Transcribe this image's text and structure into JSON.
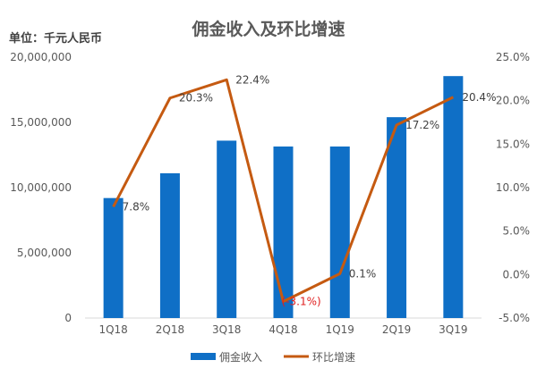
{
  "chart_data": {
    "type": "bar+line",
    "title": "佣金收入及环比增速",
    "unit_label": "单位：千元人民币",
    "categories": [
      "1Q18",
      "2Q18",
      "3Q18",
      "4Q18",
      "1Q19",
      "2Q19",
      "3Q19"
    ],
    "series": [
      {
        "name": "佣金收入",
        "type": "bar",
        "axis": "left",
        "color": "#0f6fc6",
        "values": [
          9200000,
          11100000,
          13600000,
          13150000,
          13150000,
          15400000,
          18550000
        ]
      },
      {
        "name": "环比增速",
        "type": "line",
        "axis": "right",
        "color": "#c55a11",
        "values": [
          7.8,
          20.3,
          22.4,
          -3.1,
          0.1,
          17.2,
          20.4
        ],
        "labels": [
          "7.8%",
          "20.3%",
          "22.4%",
          "(-3.1%)",
          "0.1%",
          "17.2%",
          "20.4%"
        ]
      }
    ],
    "left_axis": {
      "range": [
        0,
        20000000
      ],
      "ticks": [
        "0",
        "5,000,000",
        "10,000,000",
        "15,000,000",
        "20,000,000"
      ]
    },
    "right_axis": {
      "range": [
        -5,
        25
      ],
      "ticks": [
        "-5.0%",
        "0.0%",
        "5.0%",
        "10.0%",
        "15.0%",
        "20.0%",
        "25.0%"
      ]
    },
    "negative_label_color": "#e02020",
    "grid": false,
    "legend": "bottom"
  }
}
